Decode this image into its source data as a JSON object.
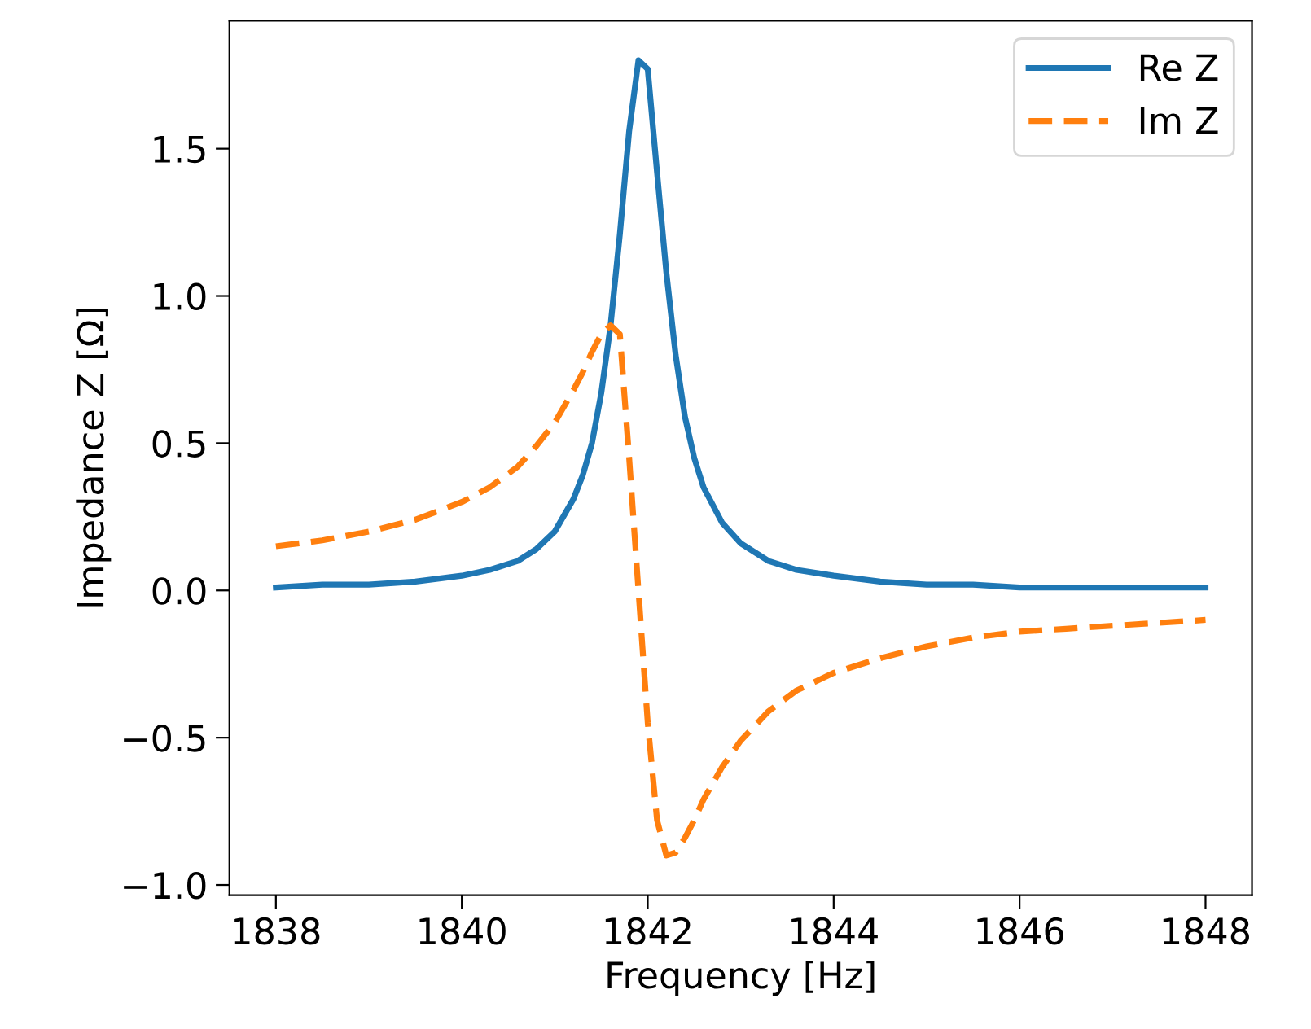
{
  "chart_data": {
    "type": "line",
    "xlabel": "Frequency [Hz]",
    "ylabel": "Impedance Z [Ω]",
    "x": [
      1838,
      1838.5,
      1839,
      1839.5,
      1840,
      1840.3,
      1840.6,
      1840.8,
      1841.0,
      1841.2,
      1841.3,
      1841.4,
      1841.5,
      1841.6,
      1841.7,
      1841.8,
      1841.9,
      1842.0,
      1842.1,
      1842.2,
      1842.3,
      1842.4,
      1842.5,
      1842.6,
      1842.8,
      1843.0,
      1843.3,
      1843.6,
      1844,
      1844.5,
      1845,
      1845.5,
      1846,
      1846.5,
      1847,
      1847.5,
      1848
    ],
    "series": [
      {
        "name": "Re Z",
        "color": "#1f77b4",
        "line_style": "solid",
        "values": [
          0.01,
          0.02,
          0.02,
          0.03,
          0.05,
          0.07,
          0.1,
          0.14,
          0.2,
          0.31,
          0.39,
          0.5,
          0.67,
          0.9,
          1.21,
          1.56,
          1.8,
          1.77,
          1.42,
          1.08,
          0.8,
          0.59,
          0.45,
          0.35,
          0.23,
          0.16,
          0.1,
          0.07,
          0.05,
          0.03,
          0.02,
          0.02,
          0.01,
          0.01,
          0.01,
          0.01,
          0.01
        ]
      },
      {
        "name": "Im Z",
        "color": "#ff7f0e",
        "line_style": "dashed",
        "values": [
          0.15,
          0.17,
          0.2,
          0.24,
          0.3,
          0.35,
          0.42,
          0.49,
          0.57,
          0.68,
          0.74,
          0.81,
          0.87,
          0.9,
          0.87,
          0.45,
          0.0,
          -0.45,
          -0.78,
          -0.9,
          -0.89,
          -0.84,
          -0.78,
          -0.71,
          -0.6,
          -0.51,
          -0.41,
          -0.34,
          -0.28,
          -0.23,
          -0.19,
          -0.16,
          -0.14,
          -0.13,
          -0.12,
          -0.11,
          -0.1
        ]
      }
    ],
    "xlim": [
      1837.5,
      1848.5
    ],
    "ylim": [
      -1.035,
      1.935
    ],
    "xticks": [
      1838,
      1840,
      1842,
      1844,
      1846,
      1848
    ],
    "yticks": [
      {
        "value": -1.0,
        "label": "−1.0"
      },
      {
        "value": -0.5,
        "label": "−0.5"
      },
      {
        "value": 0.0,
        "label": "0.0"
      },
      {
        "value": 0.5,
        "label": "0.5"
      },
      {
        "value": 1.0,
        "label": "1.0"
      },
      {
        "value": 1.5,
        "label": "1.5"
      }
    ],
    "grid": false,
    "legend": "top right"
  }
}
